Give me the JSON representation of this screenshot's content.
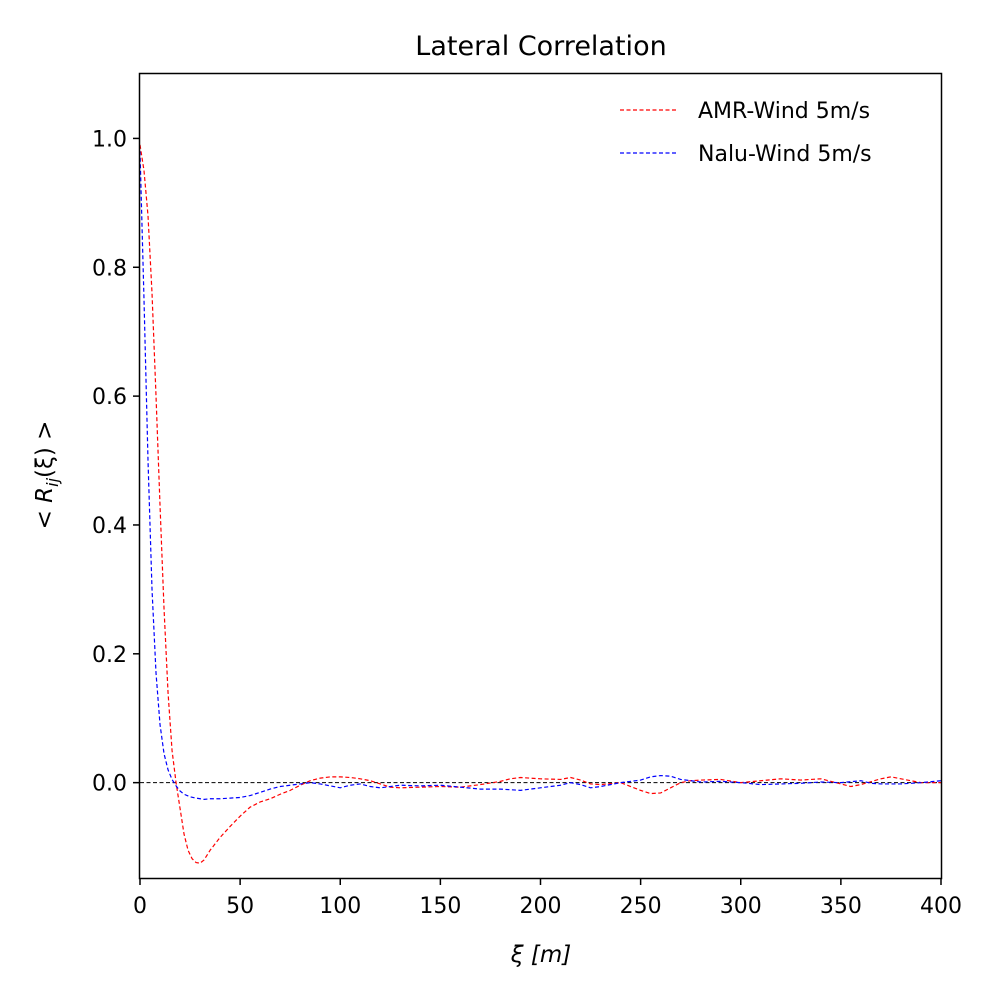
{
  "chart_data": {
    "type": "line",
    "title": "Lateral Correlation",
    "xlabel": "ξ [m]",
    "ylabel": {
      "prefix": "< ",
      "symbol": "R",
      "subscript": "ij",
      "suffix": "(ξ) >"
    },
    "xlim": [
      0,
      400
    ],
    "ylim": [
      -0.148,
      1.1
    ],
    "x_ticks": [
      0,
      50,
      100,
      150,
      200,
      250,
      300,
      350,
      400
    ],
    "y_ticks": [
      0.0,
      0.2,
      0.4,
      0.6,
      0.8,
      1.0
    ],
    "x_tick_labels": [
      "0",
      "50",
      "100",
      "150",
      "200",
      "250",
      "300",
      "350",
      "400"
    ],
    "y_tick_labels": [
      "0.0",
      "0.2",
      "0.4",
      "0.6",
      "0.8",
      "1.0"
    ],
    "grid": false,
    "legend_position": "top-right",
    "reference_line": {
      "y": 0,
      "color": "#000000",
      "style": "dashed"
    },
    "series": [
      {
        "name": "AMR-Wind 5m/s",
        "color": "#ff0000",
        "style": "dashed",
        "x": [
          0,
          2,
          4,
          6,
          8,
          10,
          12,
          14,
          16,
          18,
          20,
          22,
          24,
          26,
          28,
          30,
          32,
          35,
          40,
          45,
          50,
          55,
          60,
          65,
          70,
          75,
          80,
          85,
          90,
          95,
          100,
          105,
          110,
          115,
          120,
          125,
          130,
          140,
          150,
          160,
          170,
          180,
          185,
          190,
          200,
          210,
          215,
          220,
          225,
          230,
          240,
          250,
          255,
          260,
          265,
          270,
          275,
          280,
          290,
          300,
          310,
          320,
          330,
          340,
          350,
          355,
          360,
          370,
          375,
          380,
          390,
          400
        ],
        "y": [
          0.99,
          0.95,
          0.88,
          0.76,
          0.6,
          0.43,
          0.27,
          0.14,
          0.05,
          0.0,
          -0.04,
          -0.08,
          -0.105,
          -0.118,
          -0.124,
          -0.125,
          -0.12,
          -0.105,
          -0.085,
          -0.068,
          -0.052,
          -0.038,
          -0.03,
          -0.025,
          -0.018,
          -0.012,
          -0.004,
          0.003,
          0.007,
          0.009,
          0.009,
          0.008,
          0.006,
          0.003,
          -0.002,
          -0.007,
          -0.008,
          -0.007,
          -0.006,
          -0.007,
          -0.003,
          0.002,
          0.006,
          0.008,
          0.006,
          0.005,
          0.008,
          0.004,
          -0.002,
          -0.003,
          0.0,
          -0.012,
          -0.017,
          -0.016,
          -0.008,
          0.0,
          0.003,
          0.004,
          0.005,
          0.0,
          0.003,
          0.006,
          0.004,
          0.006,
          -0.002,
          -0.006,
          -0.003,
          0.006,
          0.009,
          0.006,
          0.0,
          0.0
        ]
      },
      {
        "name": "Nalu-Wind 5m/s",
        "color": "#0000ff",
        "style": "dashed",
        "x": [
          0,
          2,
          4,
          6,
          8,
          10,
          12,
          14,
          16,
          18,
          20,
          22,
          25,
          28,
          32,
          35,
          40,
          45,
          50,
          55,
          60,
          65,
          70,
          75,
          80,
          85,
          90,
          95,
          100,
          105,
          110,
          115,
          120,
          130,
          140,
          150,
          160,
          170,
          180,
          190,
          200,
          210,
          215,
          220,
          225,
          230,
          240,
          250,
          255,
          260,
          265,
          270,
          280,
          290,
          300,
          310,
          320,
          330,
          340,
          350,
          360,
          365,
          370,
          380,
          390,
          400
        ],
        "y": [
          0.98,
          0.75,
          0.5,
          0.3,
          0.17,
          0.09,
          0.045,
          0.02,
          0.005,
          -0.005,
          -0.013,
          -0.018,
          -0.022,
          -0.024,
          -0.026,
          -0.025,
          -0.025,
          -0.024,
          -0.023,
          -0.02,
          -0.015,
          -0.01,
          -0.006,
          -0.004,
          -0.002,
          0.0,
          -0.002,
          -0.005,
          -0.008,
          -0.004,
          -0.002,
          -0.006,
          -0.008,
          -0.004,
          -0.005,
          -0.004,
          -0.007,
          -0.01,
          -0.01,
          -0.012,
          -0.008,
          -0.004,
          0.0,
          -0.003,
          -0.008,
          -0.006,
          0.0,
          0.004,
          0.009,
          0.011,
          0.01,
          0.005,
          0.001,
          0.002,
          0.0,
          -0.003,
          -0.002,
          -0.001,
          0.001,
          0.0,
          0.003,
          -0.001,
          -0.002,
          -0.002,
          0.0,
          0.003
        ]
      }
    ]
  }
}
